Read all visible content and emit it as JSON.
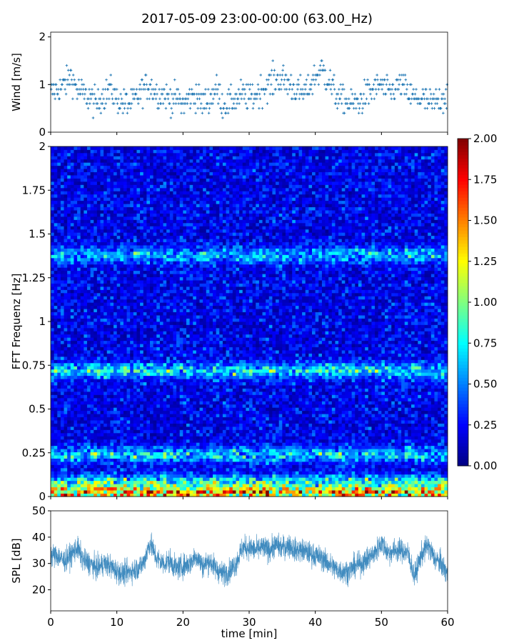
{
  "chart_data": [
    {
      "type": "scatter",
      "title": "2017-05-09 23:00-00:00 (63.00_Hz)",
      "ylabel": "Wind [m/s]",
      "xlim": [
        0,
        60
      ],
      "ylim": [
        0,
        2.1
      ],
      "yticks": [
        "0",
        "1",
        "2"
      ],
      "marker": "+",
      "color": "#1f77b4",
      "resolution": 0.1,
      "wind_mean_per_minute": [
        0.8,
        0.9,
        1.0,
        1.2,
        0.9,
        0.8,
        0.7,
        0.6,
        0.8,
        0.9,
        0.7,
        0.6,
        0.6,
        0.7,
        0.9,
        1.0,
        0.8,
        0.8,
        0.7,
        0.7,
        0.6,
        0.7,
        0.8,
        0.6,
        0.7,
        0.9,
        0.6,
        0.6,
        0.7,
        0.8,
        0.7,
        0.8,
        0.9,
        1.0,
        1.1,
        1.1,
        1.0,
        0.9,
        0.8,
        0.9,
        1.2,
        1.3,
        1.1,
        0.8,
        0.7,
        0.6,
        0.6,
        0.7,
        0.8,
        0.9,
        1.0,
        0.8,
        0.9,
        1.0,
        0.8,
        0.7,
        0.7,
        0.6,
        0.6,
        0.7,
        0.8
      ]
    },
    {
      "type": "heatmap",
      "ylabel": "FFT Frequenz [Hz]",
      "xlim": [
        0,
        60
      ],
      "ylim": [
        0,
        2
      ],
      "yticks": [
        "0",
        "0.25",
        "0.5",
        "0.75",
        "1",
        "1.25",
        "1.5",
        "1.75",
        "2"
      ],
      "colormap": "jet",
      "clim": [
        0,
        2
      ],
      "colorbar_ticks": [
        "0.00",
        "0.25",
        "0.50",
        "0.75",
        "1.00",
        "1.25",
        "1.50",
        "1.75",
        "2.00"
      ],
      "background_level": 0.3,
      "bands": [
        {
          "freq": 0.02,
          "level": 1.5
        },
        {
          "freq": 0.08,
          "level": 0.8
        },
        {
          "freq": 0.24,
          "level": 0.6
        },
        {
          "freq": 0.72,
          "level": 0.65
        },
        {
          "freq": 1.38,
          "level": 0.5
        }
      ]
    },
    {
      "type": "line",
      "xlabel": "time [min]",
      "ylabel": "SPL [dB]",
      "xlim": [
        0,
        60
      ],
      "ylim": [
        12,
        50
      ],
      "xticks": [
        "0",
        "10",
        "20",
        "30",
        "40",
        "50",
        "60"
      ],
      "yticks": [
        "20",
        "30",
        "40",
        "50"
      ],
      "color": "#1f77b4",
      "spl_mean_per_minute": [
        33,
        33,
        31,
        33,
        36,
        31,
        30,
        28,
        30,
        29,
        27,
        26,
        27,
        28,
        30,
        38,
        32,
        30,
        31,
        28,
        29,
        30,
        33,
        29,
        31,
        28,
        26,
        27,
        30,
        36,
        36,
        35,
        36,
        35,
        37,
        36,
        37,
        35,
        35,
        34,
        33,
        32,
        30,
        28,
        27,
        27,
        29,
        30,
        32,
        34,
        38,
        34,
        35,
        35,
        34,
        25,
        33,
        37,
        32,
        30,
        26
      ]
    }
  ]
}
